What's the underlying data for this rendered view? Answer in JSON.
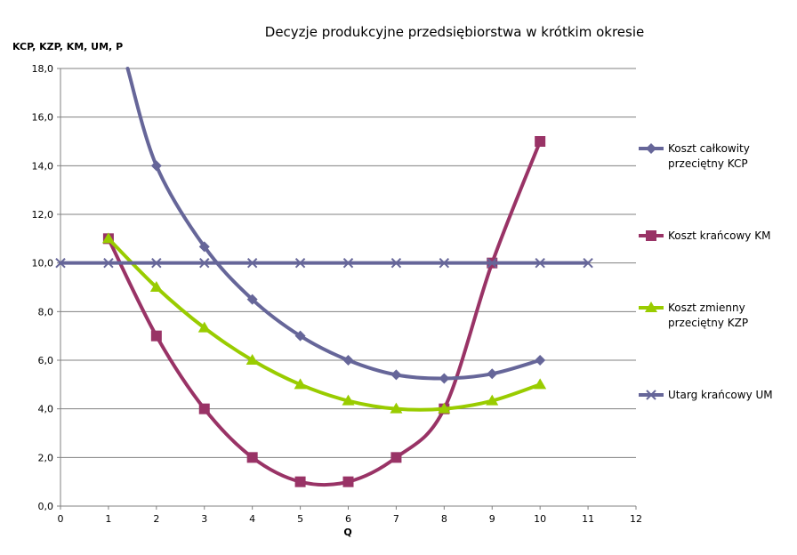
{
  "chart_data": {
    "type": "line",
    "title": "Decyzje produkcyjne przedsiębiorstwa w krótkim okresie",
    "ylabel": "KCP, KZP, KM, UM, P",
    "xlabel": "Q",
    "xlim": [
      0,
      12
    ],
    "ylim": [
      0,
      18
    ],
    "x_ticks": [
      "0",
      "1",
      "2",
      "3",
      "4",
      "5",
      "6",
      "7",
      "8",
      "9",
      "10",
      "11",
      "12"
    ],
    "y_ticks": [
      "0,0",
      "2,0",
      "4,0",
      "6,0",
      "8,0",
      "10,0",
      "12,0",
      "14,0",
      "16,0",
      "18,0"
    ],
    "grid": "horizontal",
    "legend_position": "right",
    "series": [
      {
        "name": [
          "Koszt całkowity",
          "przeciętny KCP"
        ],
        "color": "#666699",
        "marker": "diamond",
        "x": [
          1.4,
          2,
          3,
          4,
          5,
          6,
          7,
          8,
          9,
          10
        ],
        "y": [
          18.0,
          14.0,
          10.67,
          8.5,
          7.0,
          6.0,
          5.4,
          5.25,
          5.44,
          6.0
        ]
      },
      {
        "name": [
          "Koszt krańcowy KM"
        ],
        "color": "#993366",
        "marker": "square",
        "x": [
          1,
          2,
          3,
          4,
          5,
          6,
          7,
          8,
          9,
          10
        ],
        "y": [
          11.0,
          7.0,
          4.0,
          2.0,
          1.0,
          1.0,
          2.0,
          4.0,
          10.0,
          15.0
        ]
      },
      {
        "name": [
          "Koszt zmienny",
          "przeciętny KZP"
        ],
        "color": "#99cc00",
        "marker": "triangle",
        "x": [
          1,
          2,
          3,
          4,
          5,
          6,
          7,
          8,
          9,
          10
        ],
        "y": [
          11.0,
          9.0,
          7.33,
          6.0,
          5.0,
          4.33,
          4.0,
          4.0,
          4.33,
          5.0
        ]
      },
      {
        "name": [
          "Utarg krańcowy UM"
        ],
        "color": "#666699",
        "marker": "x",
        "x": [
          0,
          1,
          2,
          3,
          4,
          5,
          6,
          7,
          8,
          9,
          10,
          11
        ],
        "y": [
          10,
          10,
          10,
          10,
          10,
          10,
          10,
          10,
          10,
          10,
          10,
          10
        ]
      }
    ]
  }
}
